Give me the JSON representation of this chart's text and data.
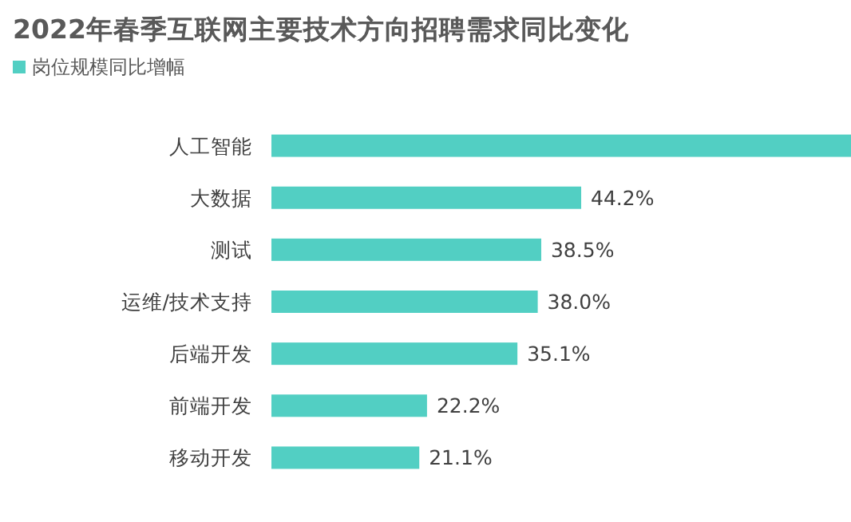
{
  "chart_data": {
    "type": "bar",
    "orientation": "horizontal",
    "title": "2022年春季互联网主要技术方向招聘需求同比变化",
    "categories": [
      "人工智能",
      "大数据",
      "测试",
      "运维/技术支持",
      "后端开发",
      "前端开发",
      "移动开发"
    ],
    "series": [
      {
        "name": "岗位规模同比增幅",
        "color": "#52cfc3",
        "values": [
          82.7,
          44.2,
          38.5,
          38.0,
          35.1,
          22.2,
          21.1
        ],
        "value_labels": [
          null,
          "44.2%",
          "38.5%",
          "38.0%",
          "35.1%",
          "22.2%",
          "21.1%"
        ]
      }
    ],
    "legend": "top left"
  }
}
